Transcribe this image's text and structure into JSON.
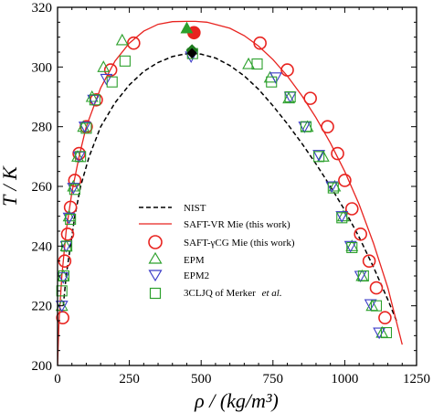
{
  "chart_data": {
    "type": "scatter",
    "xlabel": "ρ / (kg/m³)",
    "ylabel": "T / K",
    "xlim": [
      0,
      1250
    ],
    "ylim": [
      200,
      320
    ],
    "x_ticks": [
      "0",
      "250",
      "500",
      "750",
      "1000",
      "1250"
    ],
    "y_ticks": [
      "200",
      "220",
      "240",
      "260",
      "280",
      "300",
      "320"
    ],
    "grid": false,
    "legend_position": "center",
    "series": [
      {
        "name": "NIST",
        "kind": "line",
        "style": "dashed",
        "color": "#000000",
        "x": [
          20,
          30,
          45,
          60,
          80,
          110,
          150,
          200,
          250,
          300,
          350,
          400,
          440,
          468,
          500,
          550,
          600,
          650,
          700,
          750,
          800,
          850,
          900,
          950,
          1000,
          1050,
          1100,
          1150,
          1180
        ],
        "y": [
          220,
          230,
          240,
          250,
          260,
          270,
          280,
          288,
          294,
          298.5,
          301.5,
          303.5,
          304.3,
          304.6,
          304.3,
          303,
          300.5,
          297,
          292.5,
          287,
          281,
          274.5,
          267.5,
          260,
          252,
          243,
          233,
          222,
          215
        ]
      },
      {
        "name": "SAFT-VR Mie (this work)",
        "kind": "line",
        "style": "solid",
        "color": "#e8231f",
        "x": [
          0,
          5,
          15,
          30,
          50,
          75,
          100,
          150,
          200,
          250,
          300,
          350,
          400,
          450,
          480,
          520,
          600,
          650,
          700,
          750,
          800,
          850,
          900,
          950,
          1000,
          1050,
          1100,
          1150,
          1200
        ],
        "y": [
          200,
          215,
          230,
          245,
          258,
          270,
          280,
          293,
          302,
          308,
          312,
          314.3,
          315.2,
          315.3,
          315.3,
          315,
          313,
          310.5,
          307,
          302.5,
          297,
          290.5,
          283,
          274.5,
          265,
          254,
          241,
          226,
          207
        ]
      },
      {
        "name": "SAFT-γCG Mie (this work)",
        "kind": "markers",
        "marker": "circle",
        "color": "#e8231f",
        "x": [
          18,
          25,
          35,
          45,
          60,
          75,
          100,
          135,
          185,
          265,
          475,
          705,
          800,
          880,
          940,
          975,
          1000,
          1025,
          1055,
          1085,
          1110,
          1140
        ],
        "y": [
          216,
          235,
          244,
          253,
          262,
          271,
          280,
          289,
          299,
          308,
          311.5,
          308,
          299,
          289.5,
          280,
          271,
          262,
          252.5,
          244,
          235,
          226,
          216
        ]
      },
      {
        "name": "EPM",
        "kind": "markers",
        "marker": "triangle-up",
        "color": "#2ca02c",
        "x": [
          15,
          20,
          30,
          40,
          55,
          70,
          90,
          120,
          160,
          225,
          450,
          665,
          740,
          805,
          870,
          925,
          965,
          995,
          1025,
          1060,
          1095,
          1130
        ],
        "y": [
          220,
          230,
          240,
          250,
          260,
          270,
          280,
          290,
          300,
          309,
          313,
          301,
          296.5,
          289.5,
          280,
          270,
          260,
          250,
          240,
          230,
          220,
          211
        ]
      },
      {
        "name": "EPM2",
        "kind": "markers",
        "marker": "triangle-down",
        "color": "#3c3cc8",
        "x": [
          15,
          20,
          30,
          40,
          55,
          75,
          95,
          125,
          170,
          465,
          760,
          810,
          860,
          910,
          955,
          990,
          1020,
          1055,
          1090,
          1120
        ],
        "y": [
          220,
          229.5,
          240,
          249.5,
          259.5,
          270,
          280,
          289,
          296,
          303.5,
          296.5,
          290,
          280,
          270.5,
          260,
          250,
          240,
          230,
          220.5,
          211
        ]
      },
      {
        "name": "3CLJQ of Merker et al.",
        "kind": "markers",
        "marker": "square",
        "color": "#2ca02c",
        "x": [
          15,
          22,
          32,
          45,
          60,
          80,
          100,
          130,
          190,
          235,
          470,
          695,
          745,
          810,
          865,
          910,
          960,
          990,
          1025,
          1065,
          1110,
          1145
        ],
        "y": [
          225,
          230,
          240,
          249,
          259,
          270,
          279.5,
          289,
          295,
          302,
          304.5,
          301,
          295,
          290,
          280,
          270,
          259.5,
          249.5,
          239.5,
          230,
          220,
          211
        ]
      }
    ],
    "critical_point": {
      "name": "NIST critical point",
      "marker": "diamond",
      "color": "#000000",
      "x": 468,
      "y": 304.6
    },
    "critical_point_green": {
      "name": "critical point",
      "marker": "diamond",
      "color": "#1f7a1f",
      "x": 468,
      "y": 305.6
    },
    "legend_labels": {
      "nist": "NIST",
      "vr": "SAFT-VR Mie (this work)",
      "gcg": "SAFT-γCG Mie (this work)",
      "epm": "EPM",
      "epm2": "EPM2",
      "cljq_main": "3CLJQ of Merker",
      "cljq_italic": "et al."
    }
  }
}
